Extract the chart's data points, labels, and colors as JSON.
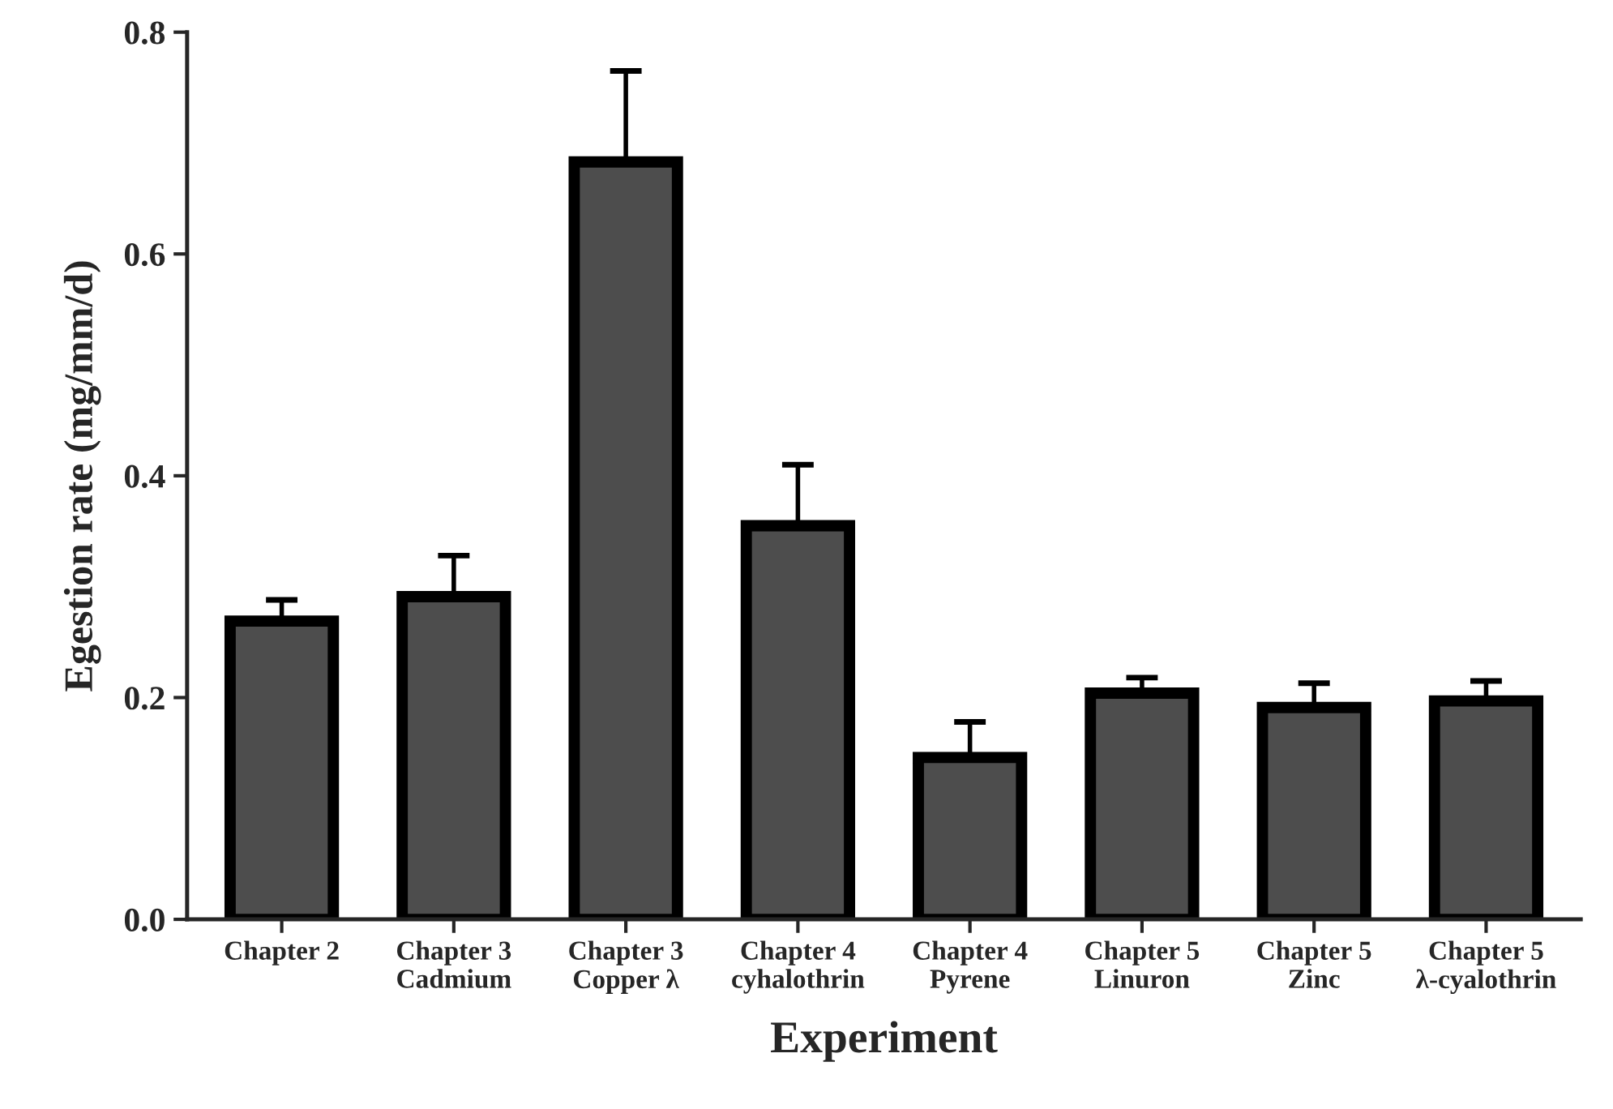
{
  "chart_data": {
    "type": "bar",
    "xlabel": "Experiment",
    "ylabel": "Egestion rate (mg/mm/d)",
    "categories": [
      "Chapter 2",
      "Chapter 3\nCadmium",
      "Chapter 3\nCopper λ",
      "Chapter 4\ncyhalothrin",
      "Chapter 4\nPyrene",
      "Chapter 5\nLinuron",
      "Chapter 5\nZinc",
      "Chapter 5\nλ-cyalothrin"
    ],
    "values": [
      0.269,
      0.291,
      0.683,
      0.355,
      0.146,
      0.204,
      0.191,
      0.197
    ],
    "errors": [
      [
        0.269,
        0.288
      ],
      [
        0.291,
        0.328
      ],
      [
        0.683,
        0.765
      ],
      [
        0.355,
        0.41
      ],
      [
        0.146,
        0.178
      ],
      [
        0.204,
        0.218
      ],
      [
        0.191,
        0.213
      ],
      [
        0.197,
        0.215
      ]
    ],
    "color": "#4d4d4d",
    "ylim": [
      0,
      0.8
    ],
    "yticks": [
      {
        "value": 0,
        "label": "0.0"
      },
      {
        "value": 0.2,
        "label": "0.2"
      },
      {
        "value": 0.4,
        "label": "0.4"
      },
      {
        "value": 0.6,
        "label": "0.6"
      },
      {
        "value": 0.8,
        "label": "0.8"
      }
    ],
    "grid": false,
    "legend": false
  }
}
